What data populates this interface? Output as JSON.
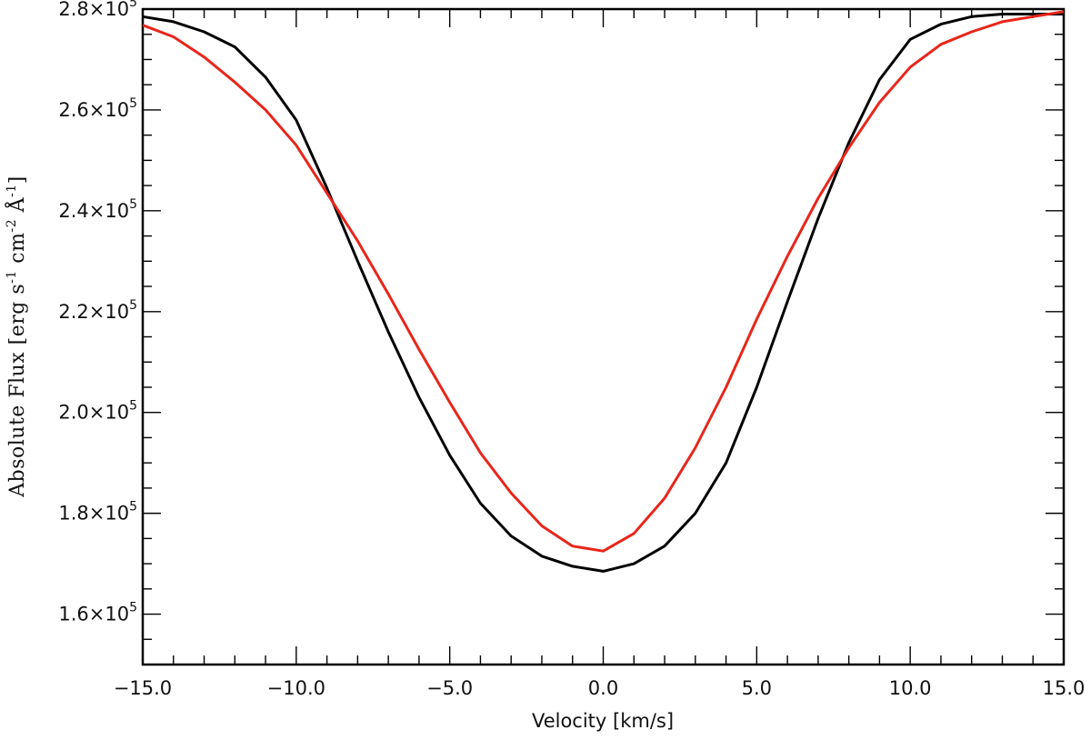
{
  "chart_data": {
    "type": "line",
    "xlabel": "Velocity [km/s]",
    "ylabel": {
      "text": "Absolute Flux [erg s",
      "parts": [
        "Absolute Flux [erg s",
        "-1",
        " cm",
        "-2",
        " Å",
        "-1",
        "]"
      ]
    },
    "xlim": [
      -15,
      15
    ],
    "ylim": [
      150000,
      280000
    ],
    "x_ticks": [
      -15,
      -10,
      -5,
      0,
      5,
      10,
      15
    ],
    "x_tick_labels": [
      "−15.0",
      "−10.0",
      "−5.0",
      "0.0",
      "5.0",
      "10.0",
      "15.0"
    ],
    "y_ticks": [
      160000,
      180000,
      200000,
      220000,
      240000,
      260000,
      280000
    ],
    "y_tick_labels": [
      {
        "mant": "1.6×10",
        "exp": "5"
      },
      {
        "mant": "1.8×10",
        "exp": "5"
      },
      {
        "mant": "2.0×10",
        "exp": "5"
      },
      {
        "mant": "2.2×10",
        "exp": "5"
      },
      {
        "mant": "2.4×10",
        "exp": "5"
      },
      {
        "mant": "2.6×10",
        "exp": "5"
      },
      {
        "mant": "2.8×10",
        "exp": "5"
      }
    ],
    "grid": false,
    "series": [
      {
        "color": "#000000",
        "x": [
          -15,
          -14,
          -13,
          -12,
          -11,
          -10,
          -9,
          -8,
          -7,
          -6,
          -5,
          -4,
          -3,
          -2,
          -1,
          0,
          1,
          2,
          3,
          4,
          5,
          6,
          7,
          8,
          9,
          10,
          11,
          12,
          13,
          14,
          15
        ],
        "y": [
          278500,
          277500,
          275500,
          272500,
          266500,
          258000,
          244500,
          230000,
          216000,
          203000,
          191500,
          182000,
          175500,
          171500,
          169500,
          168500,
          170000,
          173500,
          180000,
          190000,
          205000,
          222000,
          238500,
          253500,
          266000,
          274000,
          277000,
          278500,
          279000,
          279000,
          279000
        ]
      },
      {
        "color": "#e8261b",
        "x": [
          -15,
          -14,
          -13,
          -12,
          -11,
          -10,
          -9,
          -8,
          -7,
          -6,
          -5,
          -4,
          -3,
          -2,
          -1,
          0,
          1,
          2,
          3,
          4,
          5,
          6,
          7,
          8,
          9,
          10,
          11,
          12,
          13,
          14,
          15
        ],
        "y": [
          276800,
          274500,
          270500,
          265500,
          260000,
          253000,
          243500,
          234000,
          223500,
          212500,
          202000,
          192000,
          184000,
          177500,
          173500,
          172500,
          176000,
          183000,
          193000,
          205000,
          218500,
          231000,
          242500,
          252500,
          261500,
          268500,
          273000,
          275500,
          277500,
          278500,
          279500
        ]
      }
    ]
  }
}
